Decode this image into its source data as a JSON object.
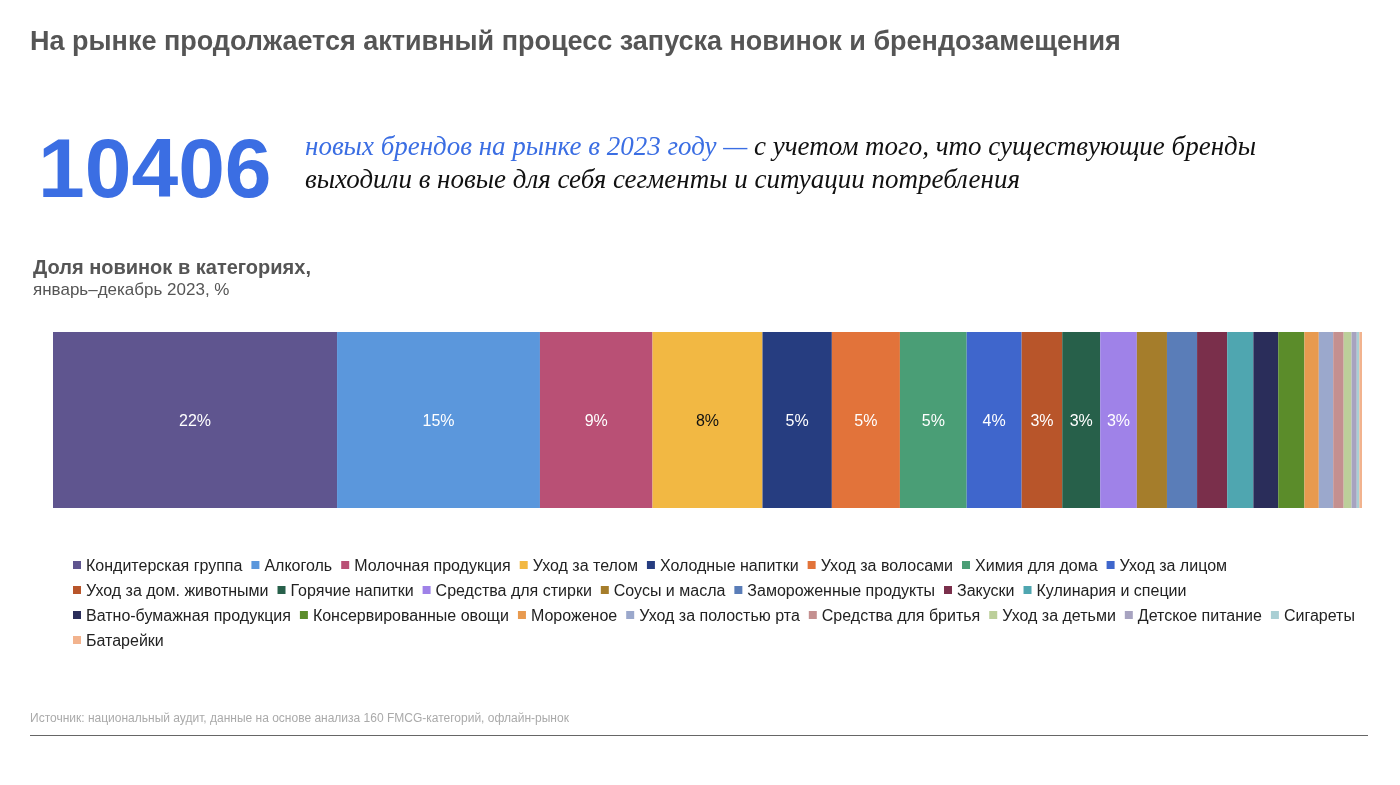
{
  "chart_data": {
    "type": "bar",
    "orientation": "horizontal",
    "stacked": true,
    "title": "Доля новинок в категориях,",
    "subtitle": "январь–декабрь 2023, %",
    "legend": "bottom",
    "categories": [
      null
    ],
    "annotations": [
      "На рынке продолжается активный процесс запуска новинок и брендозамещения",
      "10406",
      "новых брендов на рынке в 2023 году —",
      "с учетом того, что существующие бренды выходили в новые для себя сегменты и ситуации потребления",
      "Источник: национальный аудит, данные на основе анализа 160 FMCG-категорий, офлайн-рынок"
    ],
    "series": [
      {
        "name": "Кондитерская группа",
        "color": "#5f558f",
        "values": [
          21.7
        ],
        "value_labels": [
          "22%"
        ]
      },
      {
        "name": "Алкоголь",
        "color": "#5b97dc",
        "values": [
          15.5
        ],
        "value_labels": [
          "15%"
        ]
      },
      {
        "name": "Молочная продукция",
        "color": "#b95075",
        "values": [
          8.6
        ],
        "value_labels": [
          "9%"
        ]
      },
      {
        "name": "Уход за телом",
        "color": "#f2b843",
        "values": [
          8.4
        ],
        "value_labels": [
          "8%"
        ]
      },
      {
        "name": "Холодные напитки",
        "color": "#263d80",
        "values": [
          5.3
        ],
        "value_labels": [
          "5%"
        ]
      },
      {
        "name": "Уход за волосами",
        "color": "#e2733a",
        "values": [
          5.2
        ],
        "value_labels": [
          "5%"
        ]
      },
      {
        "name": "Химия для дома",
        "color": "#4a9e76",
        "values": [
          5.1
        ],
        "value_labels": [
          "5%"
        ]
      },
      {
        "name": "Уход за лицом",
        "color": "#3f66cc",
        "values": [
          4.2
        ],
        "value_labels": [
          "4%"
        ]
      },
      {
        "name": "Уход за дом. животными",
        "color": "#b8552a",
        "values": [
          3.1
        ],
        "value_labels": [
          "3%"
        ]
      },
      {
        "name": "Горячие напитки",
        "color": "#27604a",
        "values": [
          2.9
        ],
        "value_labels": [
          "3%"
        ]
      },
      {
        "name": "Средства для стирки",
        "color": "#9f82e8",
        "values": [
          2.8
        ],
        "value_labels": [
          "3%"
        ]
      },
      {
        "name": "Соусы и масла",
        "color": "#a57d2b",
        "values": [
          2.3
        ],
        "value_labels": [
          null
        ]
      },
      {
        "name": "Замороженные продукты",
        "color": "#5a7db8",
        "values": [
          2.3
        ],
        "value_labels": [
          null
        ]
      },
      {
        "name": "Закуски",
        "color": "#7a2f4b",
        "values": [
          2.3
        ],
        "value_labels": [
          null
        ]
      },
      {
        "name": "Кулинария и специи",
        "color": "#4fa6b0",
        "values": [
          2.0
        ],
        "value_labels": [
          null
        ]
      },
      {
        "name": "Ватно-бумажная продукция",
        "color": "#2a2d5a",
        "values": [
          1.9
        ],
        "value_labels": [
          null
        ]
      },
      {
        "name": "Консервированные овощи",
        "color": "#5b8c2a",
        "values": [
          2.0
        ],
        "value_labels": [
          null
        ]
      },
      {
        "name": "Мороженое",
        "color": "#e89a4f",
        "values": [
          1.1
        ],
        "value_labels": [
          null
        ]
      },
      {
        "name": "Уход за полостью рта",
        "color": "#9ba8cc",
        "values": [
          1.1
        ],
        "value_labels": [
          null
        ]
      },
      {
        "name": "Средства для бритья",
        "color": "#c49090",
        "values": [
          0.8
        ],
        "value_labels": [
          null
        ]
      },
      {
        "name": "Уход за детьми",
        "color": "#bccf9a",
        "values": [
          0.6
        ],
        "value_labels": [
          null
        ]
      },
      {
        "name": "Детское питание",
        "color": "#a7a3c0",
        "values": [
          0.4
        ],
        "value_labels": [
          null
        ]
      },
      {
        "name": "Сигареты",
        "color": "#a9cfd4",
        "values": [
          0.2
        ],
        "value_labels": [
          null
        ]
      },
      {
        "name": "Батарейки",
        "color": "#f2b38e",
        "values": [
          0.2
        ],
        "value_labels": [
          null
        ]
      }
    ]
  }
}
